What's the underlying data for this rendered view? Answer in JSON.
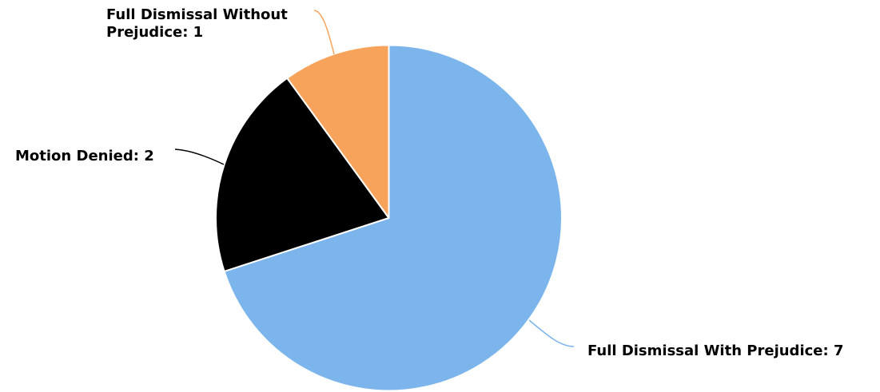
{
  "chart_data": {
    "type": "pie",
    "title": "",
    "slices": [
      {
        "name": "Full Dismissal With Prejudice",
        "value": 7,
        "color": "#7cb5ec",
        "label_lines": [
          "Full Dismissal With Prejudice: 7"
        ]
      },
      {
        "name": "Motion Denied",
        "value": 2,
        "color": "#000000",
        "label_lines": [
          "Motion Denied: 2"
        ]
      },
      {
        "name": "Full Dismissal Without Prejudice",
        "value": 1,
        "color": "#f7a35c",
        "label_lines": [
          "Full Dismissal Without",
          "Prejudice: 1"
        ]
      }
    ]
  }
}
